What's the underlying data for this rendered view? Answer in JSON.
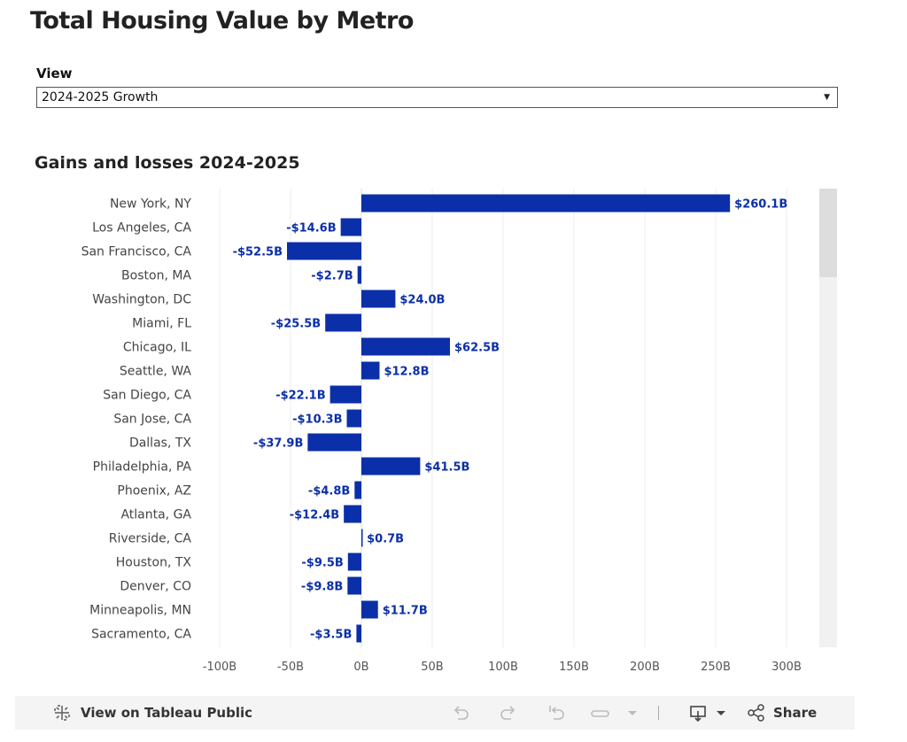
{
  "header": {
    "title": "Total Housing Value by Metro"
  },
  "filter": {
    "label": "View",
    "selected": "2024-2025 Growth"
  },
  "chart_data": {
    "type": "bar",
    "orientation": "horizontal",
    "title": "Gains and losses 2024-2025",
    "categories": [
      "New York, NY",
      "Los Angeles, CA",
      "San Francisco, CA",
      "Boston, MA",
      "Washington, DC",
      "Miami, FL",
      "Chicago, IL",
      "Seattle, WA",
      "San Diego, CA",
      "San Jose, CA",
      "Dallas, TX",
      "Philadelphia, PA",
      "Phoenix, AZ",
      "Atlanta, GA",
      "Riverside, CA",
      "Houston, TX",
      "Denver, CO",
      "Minneapolis, MN",
      "Sacramento, CA"
    ],
    "values": [
      260.1,
      -14.6,
      -52.5,
      -2.7,
      24.0,
      -25.5,
      62.5,
      12.8,
      -22.1,
      -10.3,
      -37.9,
      41.5,
      -4.8,
      -12.4,
      0.7,
      -9.5,
      -9.8,
      11.7,
      -3.5
    ],
    "value_labels": [
      "$260.1B",
      "-$14.6B",
      "-$52.5B",
      "-$2.7B",
      "$24.0B",
      "-$25.5B",
      "$62.5B",
      "$12.8B",
      "-$22.1B",
      "-$10.3B",
      "-$37.9B",
      "$41.5B",
      "-$4.8B",
      "-$12.4B",
      "$0.7B",
      "-$9.5B",
      "-$9.8B",
      "$11.7B",
      "-$3.5B"
    ],
    "xlim": [
      -110,
      330
    ],
    "x_ticks": [
      -100,
      -50,
      0,
      50,
      100,
      150,
      200,
      250,
      300
    ],
    "x_tick_labels": [
      "-100B",
      "-50B",
      "0B",
      "50B",
      "100B",
      "150B",
      "200B",
      "250B",
      "300B"
    ],
    "bar_color": "#0a2fa8",
    "grid": true
  },
  "toolbar": {
    "view_on_label": "View on Tableau Public",
    "share_label": "Share",
    "icons": [
      "tableau-icon",
      "undo-icon",
      "redo-icon",
      "revert-icon",
      "refresh-icon",
      "dropdown-icon",
      "download-icon",
      "share-icon"
    ]
  }
}
